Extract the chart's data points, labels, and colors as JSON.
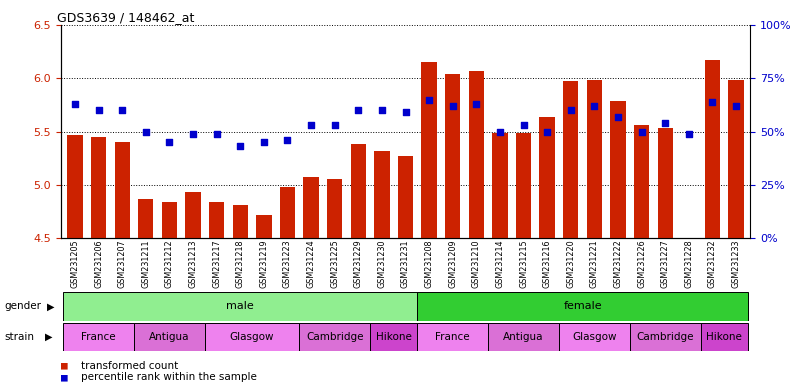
{
  "title": "GDS3639 / 148462_at",
  "samples": [
    "GSM231205",
    "GSM231206",
    "GSM231207",
    "GSM231211",
    "GSM231212",
    "GSM231213",
    "GSM231217",
    "GSM231218",
    "GSM231219",
    "GSM231223",
    "GSM231224",
    "GSM231225",
    "GSM231229",
    "GSM231230",
    "GSM231231",
    "GSM231208",
    "GSM231209",
    "GSM231210",
    "GSM231214",
    "GSM231215",
    "GSM231216",
    "GSM231220",
    "GSM231221",
    "GSM231222",
    "GSM231226",
    "GSM231227",
    "GSM231228",
    "GSM231232",
    "GSM231233"
  ],
  "bar_values": [
    5.47,
    5.45,
    5.4,
    4.87,
    4.84,
    4.93,
    4.84,
    4.81,
    4.72,
    4.98,
    5.07,
    5.05,
    5.38,
    5.32,
    5.27,
    6.15,
    6.04,
    6.07,
    5.49,
    5.49,
    5.64,
    5.97,
    5.98,
    5.79,
    5.56,
    5.53,
    4.44,
    6.17,
    5.98
  ],
  "percentile_values": [
    63,
    60,
    60,
    50,
    45,
    49,
    49,
    43,
    45,
    46,
    53,
    53,
    60,
    60,
    59,
    65,
    62,
    63,
    50,
    53,
    50,
    60,
    62,
    57,
    50,
    54,
    49,
    64,
    62
  ],
  "gender_groups": [
    {
      "label": "male",
      "start": 0,
      "end": 14,
      "color": "#90EE90"
    },
    {
      "label": "female",
      "start": 15,
      "end": 28,
      "color": "#32CD32"
    }
  ],
  "strain_groups": [
    {
      "label": "France",
      "start": 0,
      "end": 2,
      "color": "#EE82EE"
    },
    {
      "label": "Antigua",
      "start": 3,
      "end": 5,
      "color": "#DA70D6"
    },
    {
      "label": "Glasgow",
      "start": 6,
      "end": 9,
      "color": "#EE82EE"
    },
    {
      "label": "Cambridge",
      "start": 10,
      "end": 12,
      "color": "#DA70D6"
    },
    {
      "label": "Hikone",
      "start": 13,
      "end": 14,
      "color": "#CC44CC"
    },
    {
      "label": "France",
      "start": 15,
      "end": 17,
      "color": "#EE82EE"
    },
    {
      "label": "Antigua",
      "start": 18,
      "end": 20,
      "color": "#DA70D6"
    },
    {
      "label": "Glasgow",
      "start": 21,
      "end": 23,
      "color": "#EE82EE"
    },
    {
      "label": "Cambridge",
      "start": 24,
      "end": 26,
      "color": "#DA70D6"
    },
    {
      "label": "Hikone",
      "start": 27,
      "end": 28,
      "color": "#CC44CC"
    }
  ],
  "bar_color": "#CC2200",
  "dot_color": "#0000CC",
  "ylim_left": [
    4.5,
    6.5
  ],
  "ylim_right": [
    0,
    100
  ],
  "yticks_left": [
    4.5,
    5.0,
    5.5,
    6.0,
    6.5
  ],
  "yticks_right": [
    0,
    25,
    50,
    75,
    100
  ],
  "bar_bottom": 4.5,
  "xticklabel_bg": "#d0d0d0"
}
